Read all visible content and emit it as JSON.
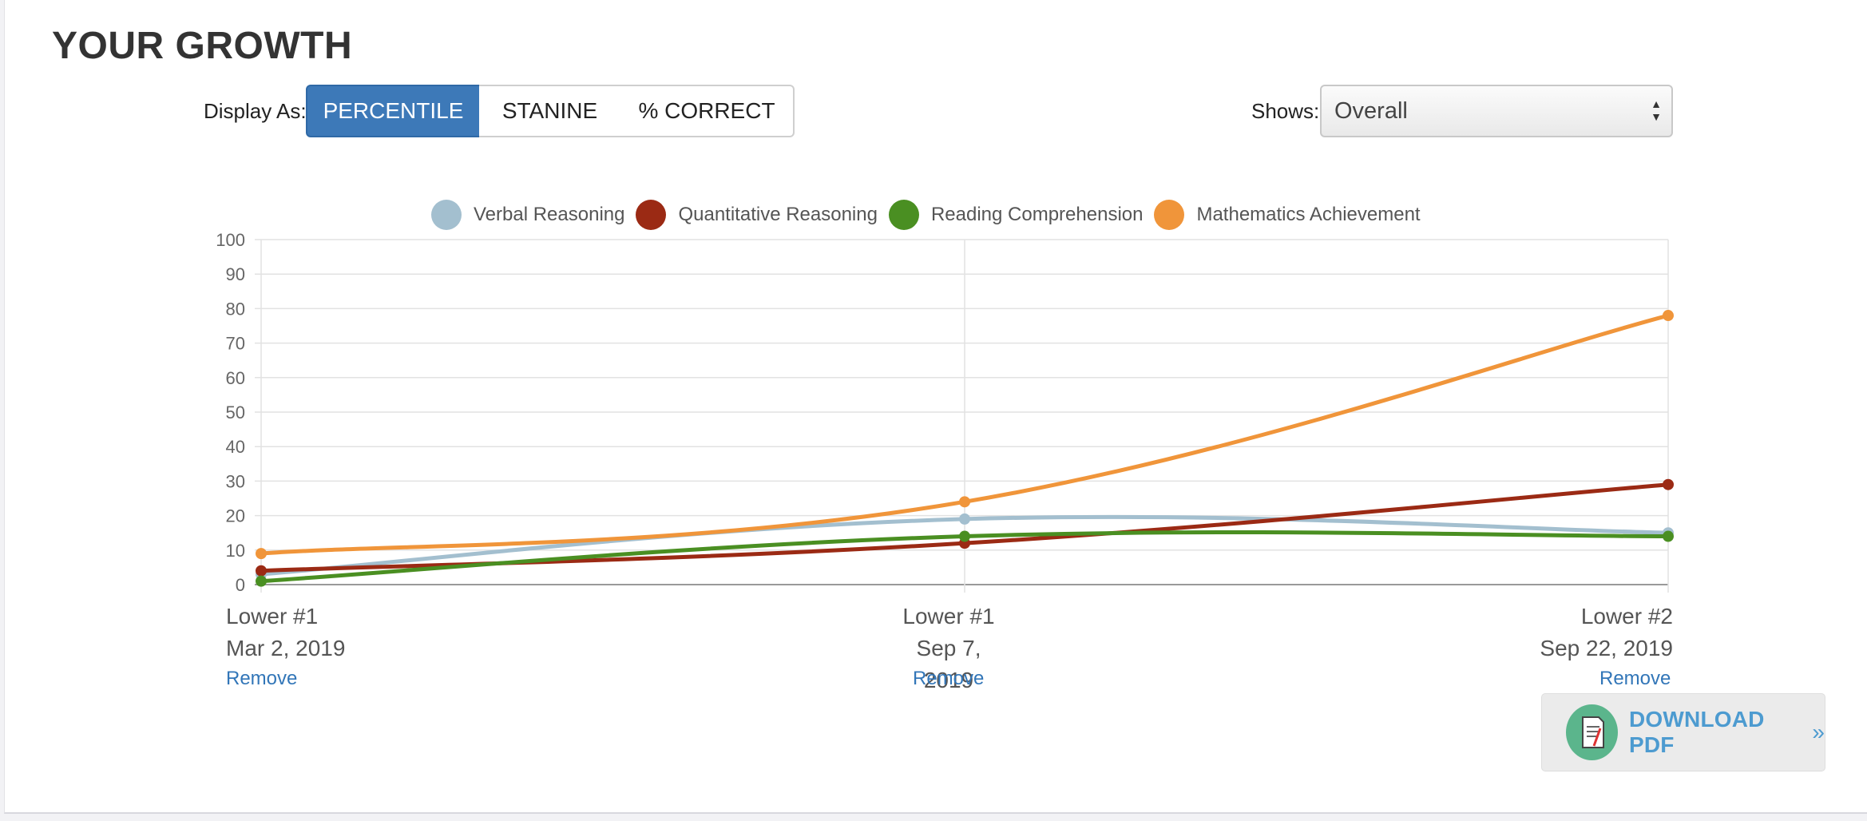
{
  "page": {
    "title": "YOUR GROWTH"
  },
  "controls": {
    "display_as_label": "Display As:",
    "display_options": [
      "PERCENTILE",
      "STANINE",
      "% CORRECT"
    ],
    "display_selected": "PERCENTILE",
    "shows_label": "Shows:",
    "shows_value": "Overall"
  },
  "chart_data": {
    "type": "line",
    "title": "",
    "xlabel": "",
    "ylabel": "",
    "ylim": [
      0,
      100
    ],
    "yticks": [
      0,
      10,
      20,
      30,
      40,
      50,
      60,
      70,
      80,
      90,
      100
    ],
    "categories": [
      {
        "line1": "Lower #1",
        "line2": "Mar 2, 2019",
        "remove": "Remove"
      },
      {
        "line1": "Lower #1",
        "line2": "Sep 7, 2019",
        "remove": "Remove"
      },
      {
        "line1": "Lower #2",
        "line2": "Sep 22, 2019",
        "remove": "Remove"
      }
    ],
    "grid": true,
    "legend_position": "top-center",
    "series": [
      {
        "name": "Verbal Reasoning",
        "color": "#a3bfcf",
        "values": [
          3,
          19,
          15
        ]
      },
      {
        "name": "Quantitative Reasoning",
        "color": "#9b2a14",
        "values": [
          4,
          12,
          29
        ]
      },
      {
        "name": "Reading Comprehension",
        "color": "#4a8f22",
        "values": [
          1,
          14,
          14
        ]
      },
      {
        "name": "Mathematics Achievement",
        "color": "#f0953a",
        "values": [
          9,
          24,
          78
        ]
      }
    ]
  },
  "download": {
    "label": "DOWNLOAD PDF",
    "chevron": "»"
  }
}
